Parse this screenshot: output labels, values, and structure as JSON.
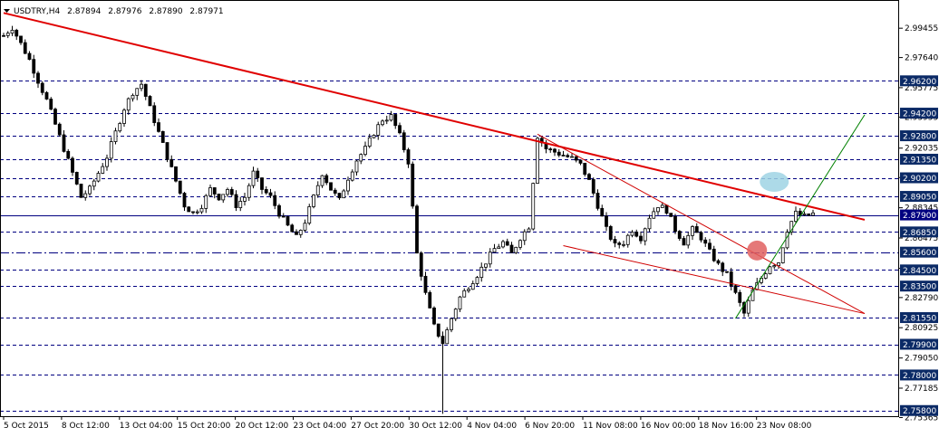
{
  "header": {
    "symbol": "USDTRY,H4",
    "open": "2.87894",
    "high": "2.87976",
    "low": "2.87890",
    "close": "2.87971",
    "menu_icon": "triangle-down-icon"
  },
  "chart_data": {
    "type": "candlestick",
    "symbol": "USDTRY",
    "timeframe": "H4",
    "ylim": [
      2.7545,
      3.012
    ],
    "price_ticks": [
      "2.99455",
      "2.97640",
      "2.95775",
      "2.93955",
      "2.92035",
      "2.90215",
      "2.88345",
      "2.86475",
      "2.84600",
      "2.82790",
      "2.80925",
      "2.79050",
      "2.77185",
      "2.75365"
    ],
    "levels": [
      {
        "label": "2.96200",
        "value": 2.962,
        "style": "dashed"
      },
      {
        "label": "2.94200",
        "value": 2.942,
        "style": "dashed"
      },
      {
        "label": "2.92800",
        "value": 2.928,
        "style": "dashed"
      },
      {
        "label": "2.91350",
        "value": 2.9135,
        "style": "dashed"
      },
      {
        "label": "2.90200",
        "value": 2.902,
        "style": "dashed"
      },
      {
        "label": "2.89050",
        "value": 2.8905,
        "style": "dashed"
      },
      {
        "label": "2.87900",
        "value": 2.879,
        "style": "solid"
      },
      {
        "label": "2.86850",
        "value": 2.8685,
        "style": "dashed"
      },
      {
        "label": "2.85600",
        "value": 2.856,
        "style": "dashdot"
      },
      {
        "label": "2.84500",
        "value": 2.845,
        "style": "dashed"
      },
      {
        "label": "2.83500",
        "value": 2.835,
        "style": "dashed"
      },
      {
        "label": "2.81550",
        "value": 2.8155,
        "style": "dashed"
      },
      {
        "label": "2.79900",
        "value": 2.799,
        "style": "dashed"
      },
      {
        "label": "2.78000",
        "value": 2.78,
        "style": "dashed"
      },
      {
        "label": "2.75800",
        "value": 2.758,
        "style": "dashed"
      }
    ],
    "time_labels": [
      "5 Oct 2015",
      "8 Oct 12:00",
      "13 Oct 04:00",
      "15 Oct 20:00",
      "20 Oct 12:00",
      "23 Oct 04:00",
      "27 Oct 20:00",
      "30 Oct 12:00",
      "4 Nov 04:00",
      "6 Nov 20:00",
      "11 Nov 08:00",
      "16 Nov 00:00",
      "18 Nov 16:00",
      "23 Nov 08:00"
    ],
    "series_path": [
      [
        0,
        2.99
      ],
      [
        2,
        2.995
      ],
      [
        4,
        2.985
      ],
      [
        6,
        2.975
      ],
      [
        8,
        2.962
      ],
      [
        10,
        2.95
      ],
      [
        12,
        2.935
      ],
      [
        14,
        2.92
      ],
      [
        16,
        2.905
      ],
      [
        18,
        2.89
      ],
      [
        20,
        2.895
      ],
      [
        22,
        2.905
      ],
      [
        24,
        2.915
      ],
      [
        26,
        2.93
      ],
      [
        28,
        2.945
      ],
      [
        30,
        2.955
      ],
      [
        32,
        2.96
      ],
      [
        34,
        2.945
      ],
      [
        36,
        2.93
      ],
      [
        38,
        2.915
      ],
      [
        40,
        2.9
      ],
      [
        42,
        2.885
      ],
      [
        44,
        2.88
      ],
      [
        46,
        2.885
      ],
      [
        48,
        2.895
      ],
      [
        50,
        2.89
      ],
      [
        52,
        2.895
      ],
      [
        54,
        2.885
      ],
      [
        56,
        2.89
      ],
      [
        58,
        2.905
      ],
      [
        60,
        2.895
      ],
      [
        62,
        2.89
      ],
      [
        64,
        2.88
      ],
      [
        66,
        2.872
      ],
      [
        68,
        2.865
      ],
      [
        70,
        2.875
      ],
      [
        72,
        2.89
      ],
      [
        74,
        2.905
      ],
      [
        76,
        2.895
      ],
      [
        78,
        2.888
      ],
      [
        80,
        2.902
      ],
      [
        82,
        2.913
      ],
      [
        84,
        2.92
      ],
      [
        86,
        2.93
      ],
      [
        88,
        2.938
      ],
      [
        90,
        2.94
      ],
      [
        92,
        2.928
      ],
      [
        94,
        2.912
      ],
      [
        96,
        2.855
      ],
      [
        98,
        2.83
      ],
      [
        100,
        2.81
      ],
      [
        102,
        2.8
      ],
      [
        104,
        2.815
      ],
      [
        106,
        2.828
      ],
      [
        108,
        2.835
      ],
      [
        110,
        2.842
      ],
      [
        112,
        2.85
      ],
      [
        114,
        2.858
      ],
      [
        116,
        2.862
      ],
      [
        118,
        2.855
      ],
      [
        120,
        2.865
      ],
      [
        122,
        2.872
      ],
      [
        124,
        2.928
      ],
      [
        126,
        2.92
      ],
      [
        128,
        2.918
      ],
      [
        130,
        2.916
      ],
      [
        132,
        2.914
      ],
      [
        134,
        2.91
      ],
      [
        136,
        2.9
      ],
      [
        138,
        2.885
      ],
      [
        140,
        2.87
      ],
      [
        142,
        2.86
      ],
      [
        144,
        2.862
      ],
      [
        146,
        2.87
      ],
      [
        148,
        2.865
      ],
      [
        150,
        2.878
      ],
      [
        152,
        2.885
      ],
      [
        154,
        2.882
      ],
      [
        156,
        2.87
      ],
      [
        158,
        2.862
      ],
      [
        160,
        2.87
      ],
      [
        162,
        2.865
      ],
      [
        164,
        2.856
      ],
      [
        166,
        2.848
      ],
      [
        168,
        2.842
      ],
      [
        170,
        2.83
      ],
      [
        172,
        2.818
      ],
      [
        174,
        2.832
      ],
      [
        176,
        2.84
      ],
      [
        178,
        2.848
      ],
      [
        180,
        2.85
      ],
      [
        182,
        2.87
      ],
      [
        184,
        2.88
      ],
      [
        186,
        2.878
      ],
      [
        188,
        2.8797
      ]
    ],
    "trend_lines": [
      {
        "name": "descending resistance",
        "color": "#e00000",
        "from": [
          0,
          3.004
        ],
        "to": [
          200,
          2.876
        ]
      },
      {
        "name": "channel upper",
        "color": "#d00000",
        "from": [
          124,
          2.929
        ],
        "to": [
          200,
          2.818
        ]
      },
      {
        "name": "channel lower",
        "color": "#d00000",
        "from": [
          130,
          2.86
        ],
        "to": [
          200,
          2.818
        ]
      },
      {
        "name": "ascending support",
        "color": "#008000",
        "from": [
          170,
          2.815
        ],
        "to": [
          200,
          2.941
        ]
      }
    ],
    "highlights": [
      {
        "name": "resistance touch",
        "color": "#9fd4e4",
        "x": 179,
        "y": 2.8995
      },
      {
        "name": "breakout",
        "color": "#e06060",
        "x": 175,
        "y": 2.857
      }
    ]
  },
  "colors": {
    "bull": "#000000",
    "bear": "#000000",
    "grid": "#000080",
    "current_price_bg": "#000080",
    "level_bg": "#0b2a66"
  }
}
